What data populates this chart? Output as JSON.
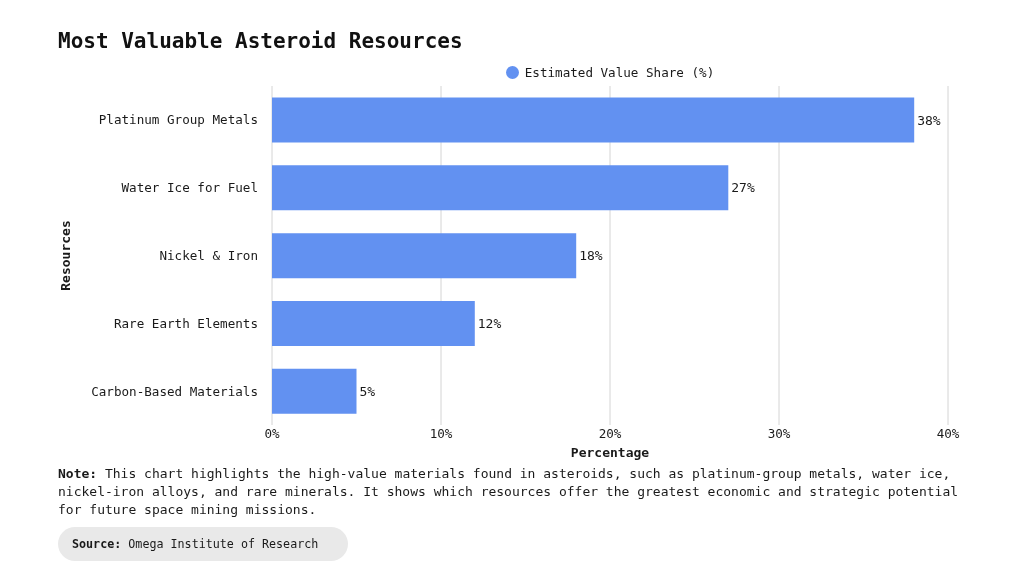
{
  "chart_data": {
    "type": "bar",
    "orientation": "horizontal",
    "title": "Most Valuable Asteroid Resources",
    "xlabel": "Percentage",
    "ylabel": "Resources",
    "categories": [
      "Platinum Group Metals",
      "Water Ice for Fuel",
      "Nickel & Iron",
      "Rare Earth Elements",
      "Carbon-Based Materials"
    ],
    "series": [
      {
        "name": "Estimated Value Share (%)",
        "color": "#6291f1",
        "values": [
          38,
          27,
          18,
          12,
          5
        ],
        "value_labels": [
          "38%",
          "27%",
          "18%",
          "12%",
          "5%"
        ]
      }
    ],
    "xlim": [
      0,
      40
    ],
    "xticks": [
      {
        "value": 0,
        "label": "0%"
      },
      {
        "value": 10,
        "label": "10%"
      },
      {
        "value": 20,
        "label": "20%"
      },
      {
        "value": 30,
        "label": "30%"
      },
      {
        "value": 40,
        "label": "40%"
      }
    ],
    "grid": "x",
    "legend": "top",
    "annotations": [
      "Note: This chart highlights the high-value materials found in asteroids, such as platinum-group metals, water ice, nickel-iron alloys, and rare minerals. It shows which resources offer the greatest economic and strategic potential for future space mining missions.",
      "Source: Omega Institute of Research"
    ]
  }
}
